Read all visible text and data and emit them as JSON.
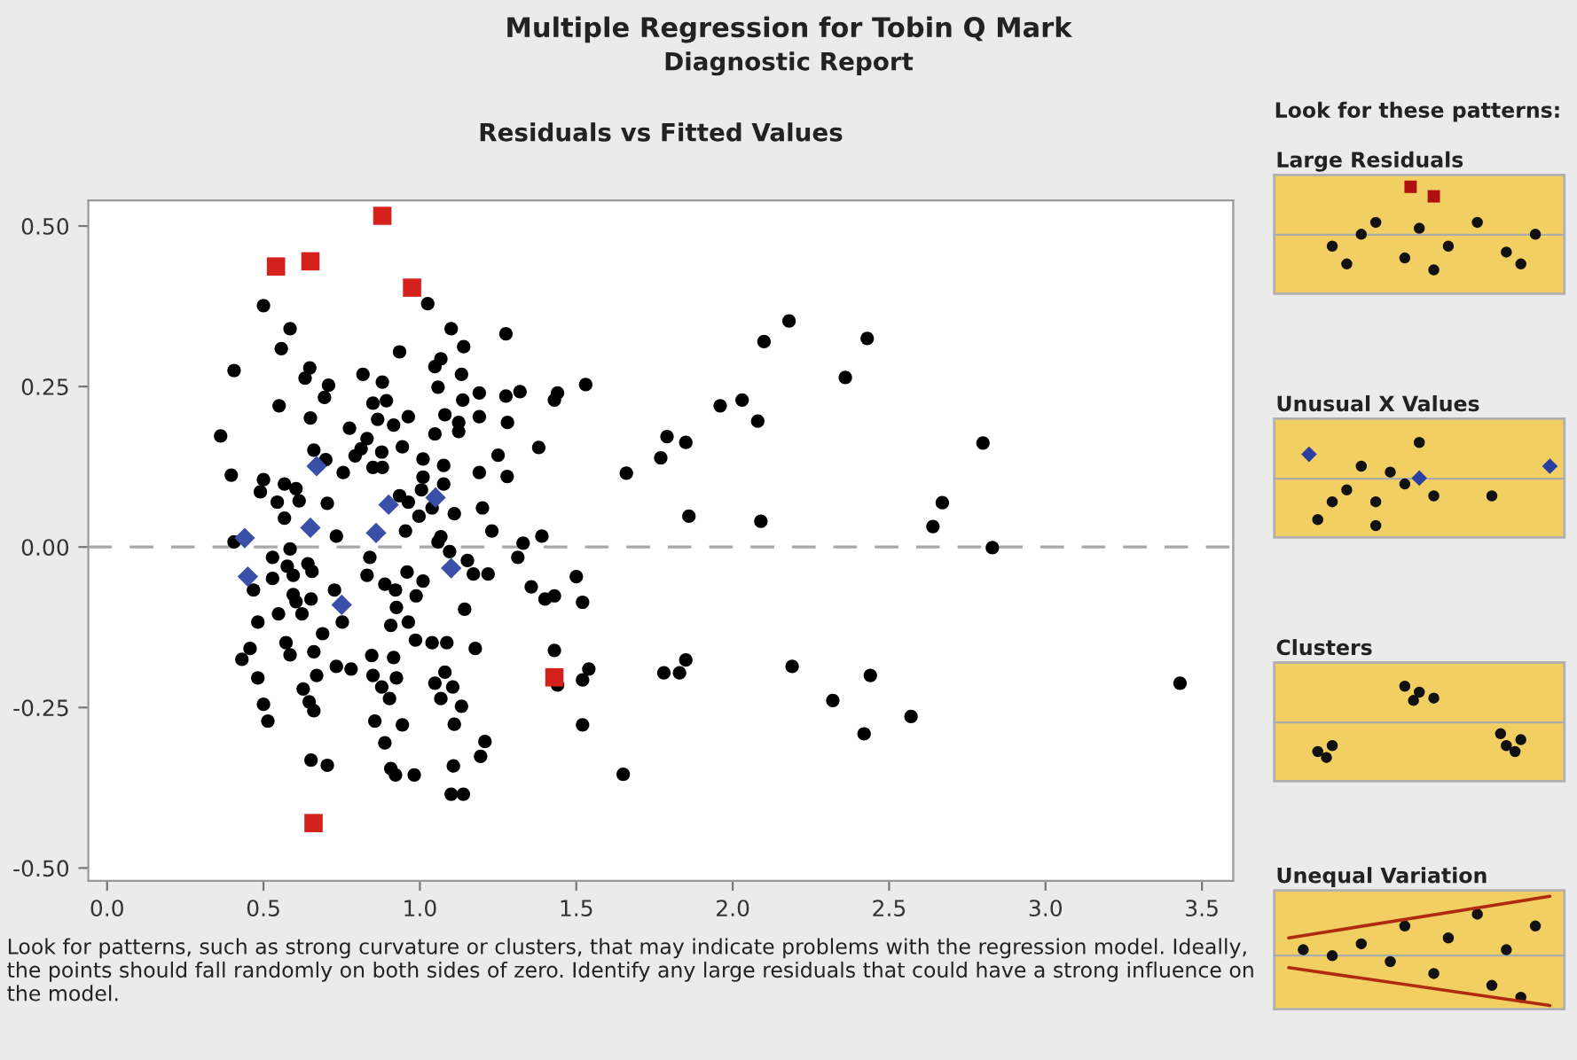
{
  "chart_data": {
    "type": "scatter",
    "title": "Multiple Regression for Tobin Q Mark",
    "subtitle": "Diagnostic Report",
    "annotations": [
      "Residuals vs Fitted Values",
      "Look for these patterns:",
      "Large Residuals",
      "Unusual X Values",
      "Clusters",
      "Unequal Variation",
      "Look for patterns, such as strong curvature or clusters, that may indicate problems with the regression model. Ideally, the points should fall randomly on both sides of zero. Identify any large residuals that could have a strong influence on the model."
    ],
    "xlim": [
      -0.06,
      3.6
    ],
    "xticks": [
      {
        "value": 0,
        "label": "0.0"
      },
      {
        "value": 0.5,
        "label": "0.5"
      },
      {
        "value": 1,
        "label": "1.0"
      },
      {
        "value": 1.5,
        "label": "1.5"
      },
      {
        "value": 2,
        "label": "2.0"
      },
      {
        "value": 2.5,
        "label": "2.5"
      },
      {
        "value": 3,
        "label": "3.0"
      },
      {
        "value": 3.5,
        "label": "3.5"
      }
    ],
    "ylim": [
      -0.52,
      0.54
    ],
    "yticks": [
      {
        "value": -0.5,
        "label": "-0.50"
      },
      {
        "value": -0.25,
        "label": "-0.25"
      },
      {
        "value": 0,
        "label": "0.00"
      },
      {
        "value": 0.25,
        "label": "0.25"
      },
      {
        "value": 0.5,
        "label": "0.50"
      }
    ],
    "grid": false,
    "legend": false,
    "ref_lines": [
      {
        "axis": "y",
        "value": 0,
        "color": "#a8a8a8",
        "line_style": "dashed"
      }
    ],
    "series": [
      {
        "color": "#000000",
        "marker": "circle",
        "x": [
          2.18,
          2.1,
          2.43,
          2.36,
          1.96,
          2.03,
          2.08,
          1.53,
          1.44,
          1.43,
          1.38,
          1.79,
          1.85,
          1.77,
          1.66,
          1.86,
          2.09,
          2.8,
          2.67,
          2.64,
          2.83,
          1.39,
          1.5,
          1.52,
          1.43,
          1.4,
          1.43,
          1.54,
          1.52,
          1.44,
          1.78,
          1.83,
          1.85,
          2.19,
          2.44,
          2.32,
          2.42,
          2.57,
          1.52,
          1.65,
          3.43,
          0.5,
          0.585,
          0.557,
          0.406,
          0.648,
          0.633,
          0.708,
          0.695,
          0.55,
          0.65,
          0.363,
          0.397,
          0.5,
          0.49,
          0.567,
          0.604,
          0.614,
          0.544,
          0.661,
          0.699,
          0.755,
          0.704,
          0.567,
          0.733,
          0.818,
          0.88,
          0.935,
          1.025,
          1.1,
          1.14,
          1.067,
          1.048,
          1.133,
          1.058,
          1.275,
          1.19,
          1.275,
          1.32,
          1.137,
          0.85,
          0.893,
          0.865,
          0.916,
          0.963,
          1.08,
          1.19,
          1.28,
          0.775,
          0.831,
          0.812,
          0.793,
          0.878,
          0.944,
          1.048,
          1.124,
          1.124,
          1.01,
          1.076,
          1.25,
          0.85,
          0.88,
          1.01,
          1.005,
          1.076,
          1.19,
          1.279,
          1.11,
          1.039,
          0.963,
          0.935,
          1.2,
          1.23,
          1.067,
          0.954,
          0.997,
          1.33,
          0.406,
          0.529,
          0.585,
          0.576,
          0.529,
          0.468,
          0.482,
          0.595,
          0.595,
          0.642,
          0.655,
          0.548,
          0.604,
          0.623,
          0.652,
          0.727,
          0.752,
          0.689,
          0.572,
          0.585,
          0.661,
          0.457,
          0.431,
          0.482,
          0.67,
          0.627,
          0.5,
          0.646,
          0.661,
          0.514,
          0.733,
          0.78,
          0.846,
          0.916,
          0.85,
          0.878,
          0.925,
          0.903,
          0.856,
          0.944,
          0.888,
          0.652,
          0.704,
          0.907,
          0.922,
          0.982,
          0.84,
          0.831,
          0.888,
          0.922,
          0.959,
          0.988,
          0.925,
          0.963,
          0.907,
          1.01,
          1.058,
          1.095,
          1.152,
          0.986,
          1.039,
          1.086,
          1.177,
          1.08,
          1.048,
          1.105,
          1.067,
          1.133,
          1.11,
          1.208,
          1.194,
          1.107,
          1.1,
          1.139,
          1.171,
          1.218,
          1.143,
          1.313,
          1.356
        ],
        "values": [
          0.352,
          0.32,
          0.325,
          0.264,
          0.22,
          0.229,
          0.196,
          0.253,
          0.24,
          0.229,
          0.155,
          0.172,
          0.163,
          0.139,
          0.115,
          0.048,
          0.04,
          0.162,
          0.069,
          0.032,
          -0.001,
          0.017,
          -0.046,
          -0.086,
          -0.076,
          -0.081,
          -0.161,
          -0.19,
          -0.207,
          -0.215,
          -0.196,
          -0.196,
          -0.176,
          -0.186,
          -0.2,
          -0.239,
          -0.291,
          -0.264,
          -0.277,
          -0.354,
          -0.212,
          0.376,
          0.34,
          0.309,
          0.275,
          0.279,
          0.263,
          0.252,
          0.233,
          0.22,
          0.201,
          0.173,
          0.112,
          0.105,
          0.086,
          0.098,
          0.091,
          0.072,
          0.07,
          0.151,
          0.136,
          0.116,
          0.068,
          0.045,
          0.017,
          0.269,
          0.257,
          0.304,
          0.379,
          0.34,
          0.312,
          0.293,
          0.281,
          0.269,
          0.249,
          0.332,
          0.24,
          0.235,
          0.242,
          0.229,
          0.224,
          0.228,
          0.199,
          0.19,
          0.203,
          0.206,
          0.203,
          0.194,
          0.185,
          0.169,
          0.153,
          0.142,
          0.148,
          0.156,
          0.176,
          0.194,
          0.18,
          0.137,
          0.127,
          0.143,
          0.124,
          0.124,
          0.109,
          0.089,
          0.098,
          0.116,
          0.11,
          0.052,
          0.061,
          0.07,
          0.08,
          0.061,
          0.025,
          0.016,
          0.025,
          0.048,
          0.006,
          0.008,
          -0.016,
          -0.003,
          -0.03,
          -0.049,
          -0.067,
          -0.117,
          -0.044,
          -0.074,
          -0.026,
          -0.038,
          -0.104,
          -0.085,
          -0.104,
          -0.081,
          -0.067,
          -0.117,
          -0.135,
          -0.149,
          -0.168,
          -0.163,
          -0.158,
          -0.175,
          -0.204,
          -0.2,
          -0.221,
          -0.245,
          -0.241,
          -0.255,
          -0.271,
          -0.186,
          -0.19,
          -0.169,
          -0.172,
          -0.2,
          -0.218,
          -0.204,
          -0.236,
          -0.271,
          -0.277,
          -0.305,
          -0.332,
          -0.34,
          -0.345,
          -0.355,
          -0.355,
          -0.016,
          -0.044,
          -0.058,
          -0.067,
          -0.039,
          -0.076,
          -0.094,
          -0.117,
          -0.122,
          -0.053,
          0.008,
          -0.007,
          -0.021,
          -0.145,
          -0.149,
          -0.149,
          -0.158,
          -0.195,
          -0.212,
          -0.218,
          -0.236,
          -0.248,
          -0.276,
          -0.303,
          -0.326,
          -0.341,
          -0.385,
          -0.385,
          -0.042,
          -0.042,
          -0.097,
          -0.016,
          -0.062
        ]
      },
      {
        "color": "#3a4fa8",
        "marker": "diamond",
        "x": [
          0.44,
          0.67,
          0.65,
          0.86,
          0.9,
          1.05,
          0.45,
          0.75,
          1.1
        ],
        "values": [
          0.014,
          0.126,
          0.03,
          0.022,
          0.066,
          0.077,
          -0.046,
          -0.09,
          -0.033
        ]
      },
      {
        "color": "#d4211c",
        "marker": "square",
        "x": [
          0.54,
          0.65,
          0.88,
          0.975,
          1.43,
          0.66
        ],
        "values": [
          0.437,
          0.445,
          0.516,
          0.404,
          -0.203,
          -0.43
        ]
      }
    ]
  }
}
